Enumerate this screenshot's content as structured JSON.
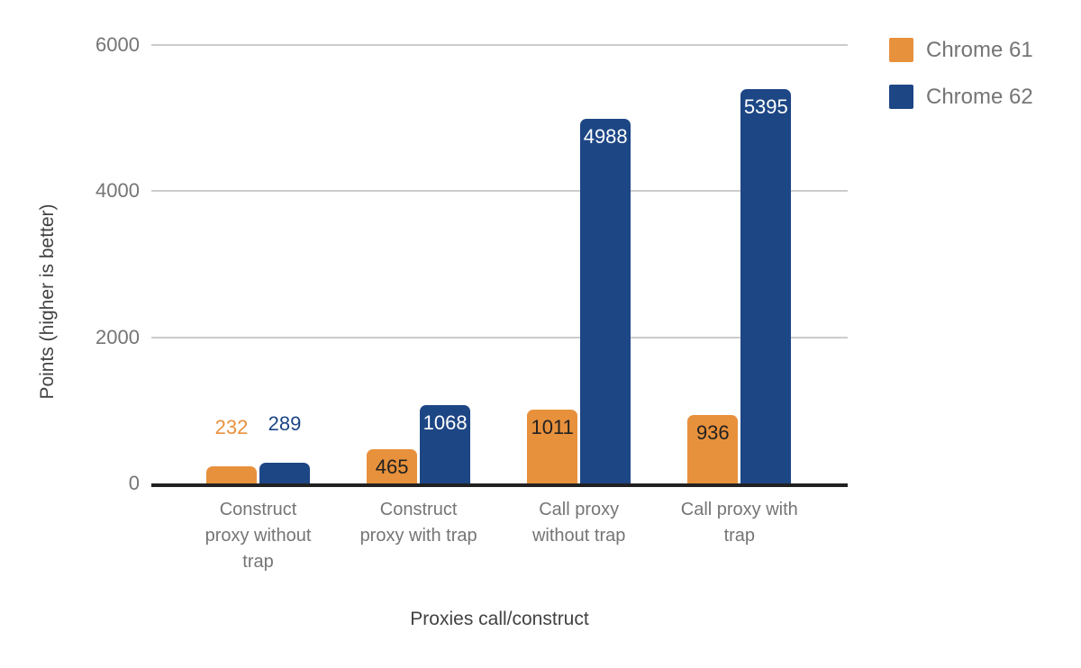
{
  "chart_data": {
    "type": "bar",
    "title": "",
    "categories": [
      "Construct proxy without trap",
      "Construct proxy with trap",
      "Call proxy without trap",
      "Call proxy with trap"
    ],
    "category_lines": [
      [
        "Construct",
        "proxy without",
        "trap"
      ],
      [
        "Construct",
        "proxy with trap"
      ],
      [
        "Call proxy",
        "without trap"
      ],
      [
        "Call proxy with",
        "trap"
      ]
    ],
    "series": [
      {
        "name": "Chrome 61",
        "color": "#e8913c",
        "values": [
          232,
          465,
          1011,
          936
        ]
      },
      {
        "name": "Chrome 62",
        "color": "#1d4685",
        "values": [
          289,
          1068,
          4988,
          5395
        ]
      }
    ],
    "xlabel": "Proxies call/construct",
    "ylabel": "Points (higher is better)",
    "ylim": [
      0,
      6000
    ],
    "yticks": [
      0,
      2000,
      4000,
      6000
    ],
    "grid": true,
    "legend_position": "top-right",
    "colors": {
      "gridline": "#cccccc",
      "baseline": "#212121",
      "tick_text": "#757575",
      "axis_title_text": "#424242",
      "inside_label_on_orange": "#212121",
      "inside_label_on_blue": "#ffffff"
    }
  }
}
